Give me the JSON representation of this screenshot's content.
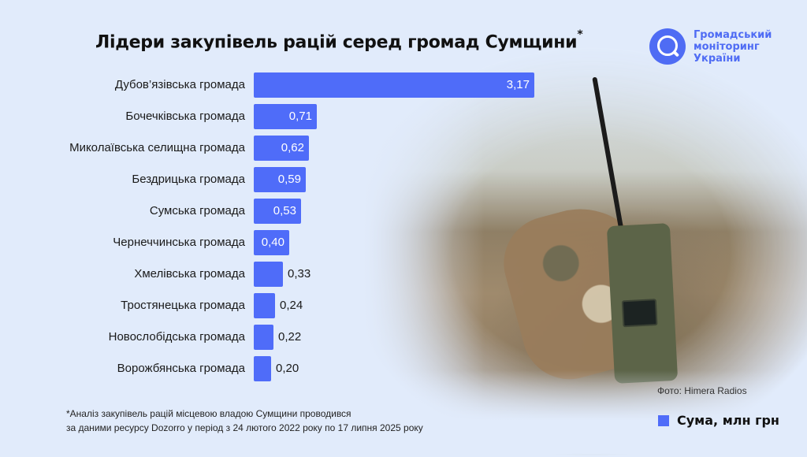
{
  "title": "Лідери закупівель рацій серед громад Сумщини",
  "title_asterisk": "*",
  "logo": {
    "line1": "Громадський",
    "line2": "моніторинг",
    "line3": "України",
    "color": "#4f6cf4"
  },
  "photo_credit": "Фото: Himera Radios",
  "footnote": {
    "line1": "*Аналіз закупівель рацій місцевою владою Сумщини проводився",
    "line2": "за даними ресурсу Dozorro у період з 24 лютого 2022 року по 17 липня 2025 року"
  },
  "legend": {
    "label": "Сума, млн грн",
    "color": "#4f6cf9"
  },
  "bars": [
    {
      "label": "Дубов’язівська громада",
      "value_text": "3,17"
    },
    {
      "label": "Бочечківська громада",
      "value_text": "0,71"
    },
    {
      "label": "Миколаївська селищна громада",
      "value_text": "0,62"
    },
    {
      "label": "Бездрицька громада",
      "value_text": "0,59"
    },
    {
      "label": "Сумська громада",
      "value_text": "0,53"
    },
    {
      "label": "Чернеччинська громада",
      "value_text": "0,40"
    },
    {
      "label": "Хмелівська громада",
      "value_text": "0,33"
    },
    {
      "label": "Тростянецька громада",
      "value_text": "0,24"
    },
    {
      "label": "Новослобідська громада",
      "value_text": "0,22"
    },
    {
      "label": "Ворожбянська громада",
      "value_text": "0,20"
    }
  ],
  "chart_data": {
    "type": "bar",
    "orientation": "horizontal",
    "title": "Лідери закупівель рацій серед громад Сумщини*",
    "xlabel": "",
    "ylabel": "",
    "legend": [
      "Сума, млн грн"
    ],
    "legend_position": "bottom-right",
    "grid": false,
    "categories": [
      "Дубов’язівська громада",
      "Бочечківська громада",
      "Миколаївська селищна громада",
      "Бездрицька громада",
      "Сумська громада",
      "Чернеччинська громада",
      "Хмелівська громада",
      "Тростянецька громада",
      "Новослобідська громада",
      "Ворожбянська громада"
    ],
    "series": [
      {
        "name": "Сума, млн грн",
        "color": "#4f6cf9",
        "values": [
          3.17,
          0.71,
          0.62,
          0.59,
          0.53,
          0.4,
          0.33,
          0.24,
          0.22,
          0.2
        ]
      }
    ],
    "annotations": [
      "*Аналіз закупівель рацій місцевою владою Сумщини проводився за даними ресурсу Dozorro у період з 24 лютого 2022 року по 17 липня 2025 року",
      "Фото: Himera Radios"
    ]
  }
}
